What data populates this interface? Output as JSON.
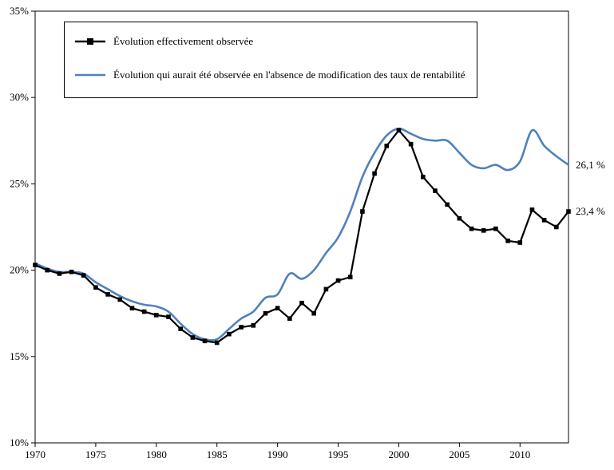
{
  "chart_data": {
    "type": "line",
    "title": "",
    "xlabel": "",
    "ylabel": "",
    "xlim": [
      1970,
      2014
    ],
    "ylim": [
      10,
      35
    ],
    "grid": false,
    "legend_position": "top-left-inside",
    "x": [
      1970,
      1971,
      1972,
      1973,
      1974,
      1975,
      1976,
      1977,
      1978,
      1979,
      1980,
      1981,
      1982,
      1983,
      1984,
      1985,
      1986,
      1987,
      1988,
      1989,
      1990,
      1991,
      1992,
      1993,
      1994,
      1995,
      1996,
      1997,
      1998,
      1999,
      2000,
      2001,
      2002,
      2003,
      2004,
      2005,
      2006,
      2007,
      2008,
      2009,
      2010,
      2011,
      2012,
      2013,
      2014
    ],
    "x_ticks": [
      {
        "value": 1970,
        "label": "1970"
      },
      {
        "value": 1975,
        "label": "1975"
      },
      {
        "value": 1980,
        "label": "1980"
      },
      {
        "value": 1985,
        "label": "1985"
      },
      {
        "value": 1990,
        "label": "1990"
      },
      {
        "value": 1995,
        "label": "1995"
      },
      {
        "value": 2000,
        "label": "2000"
      },
      {
        "value": 2005,
        "label": "2005"
      },
      {
        "value": 2010,
        "label": "2010"
      }
    ],
    "y_ticks": [
      {
        "value": 10,
        "label": "10%"
      },
      {
        "value": 15,
        "label": "15%"
      },
      {
        "value": 20,
        "label": "20%"
      },
      {
        "value": 25,
        "label": "25%"
      },
      {
        "value": 30,
        "label": "30%"
      },
      {
        "value": 35,
        "label": "35%"
      }
    ],
    "series": [
      {
        "name": "Évolution effectivement observée",
        "color": "#000000",
        "marker": "square",
        "line_style": "straight",
        "values": [
          20.3,
          20.0,
          19.8,
          19.9,
          19.7,
          19.0,
          18.6,
          18.3,
          17.8,
          17.6,
          17.4,
          17.3,
          16.6,
          16.1,
          15.9,
          15.8,
          16.3,
          16.7,
          16.8,
          17.5,
          17.8,
          17.2,
          18.1,
          17.5,
          18.9,
          19.4,
          19.6,
          23.4,
          25.6,
          27.2,
          28.1,
          27.3,
          25.4,
          24.6,
          23.8,
          23.0,
          22.4,
          22.3,
          22.4,
          21.7,
          21.6,
          23.5,
          22.9,
          22.5,
          23.4
        ]
      },
      {
        "name": "Évolution qui aurait été observée en l'absence de modification des taux de rentabilité",
        "color": "#4f81bd",
        "marker": "none",
        "line_style": "smooth",
        "values": [
          20.4,
          20.1,
          19.9,
          19.9,
          19.8,
          19.3,
          18.9,
          18.5,
          18.2,
          18.0,
          17.9,
          17.6,
          16.9,
          16.3,
          16.0,
          16.0,
          16.6,
          17.2,
          17.6,
          18.4,
          18.6,
          19.8,
          19.5,
          20.0,
          21.0,
          21.9,
          23.4,
          25.4,
          26.8,
          27.8,
          28.2,
          27.9,
          27.6,
          27.5,
          27.5,
          26.8,
          26.1,
          25.9,
          26.1,
          25.8,
          26.3,
          28.1,
          27.2,
          26.6,
          26.1
        ]
      }
    ],
    "end_labels": [
      {
        "text": "26,1 %",
        "series": 1,
        "value": 26.1
      },
      {
        "text": "23,4 %",
        "series": 0,
        "value": 23.4
      }
    ]
  }
}
